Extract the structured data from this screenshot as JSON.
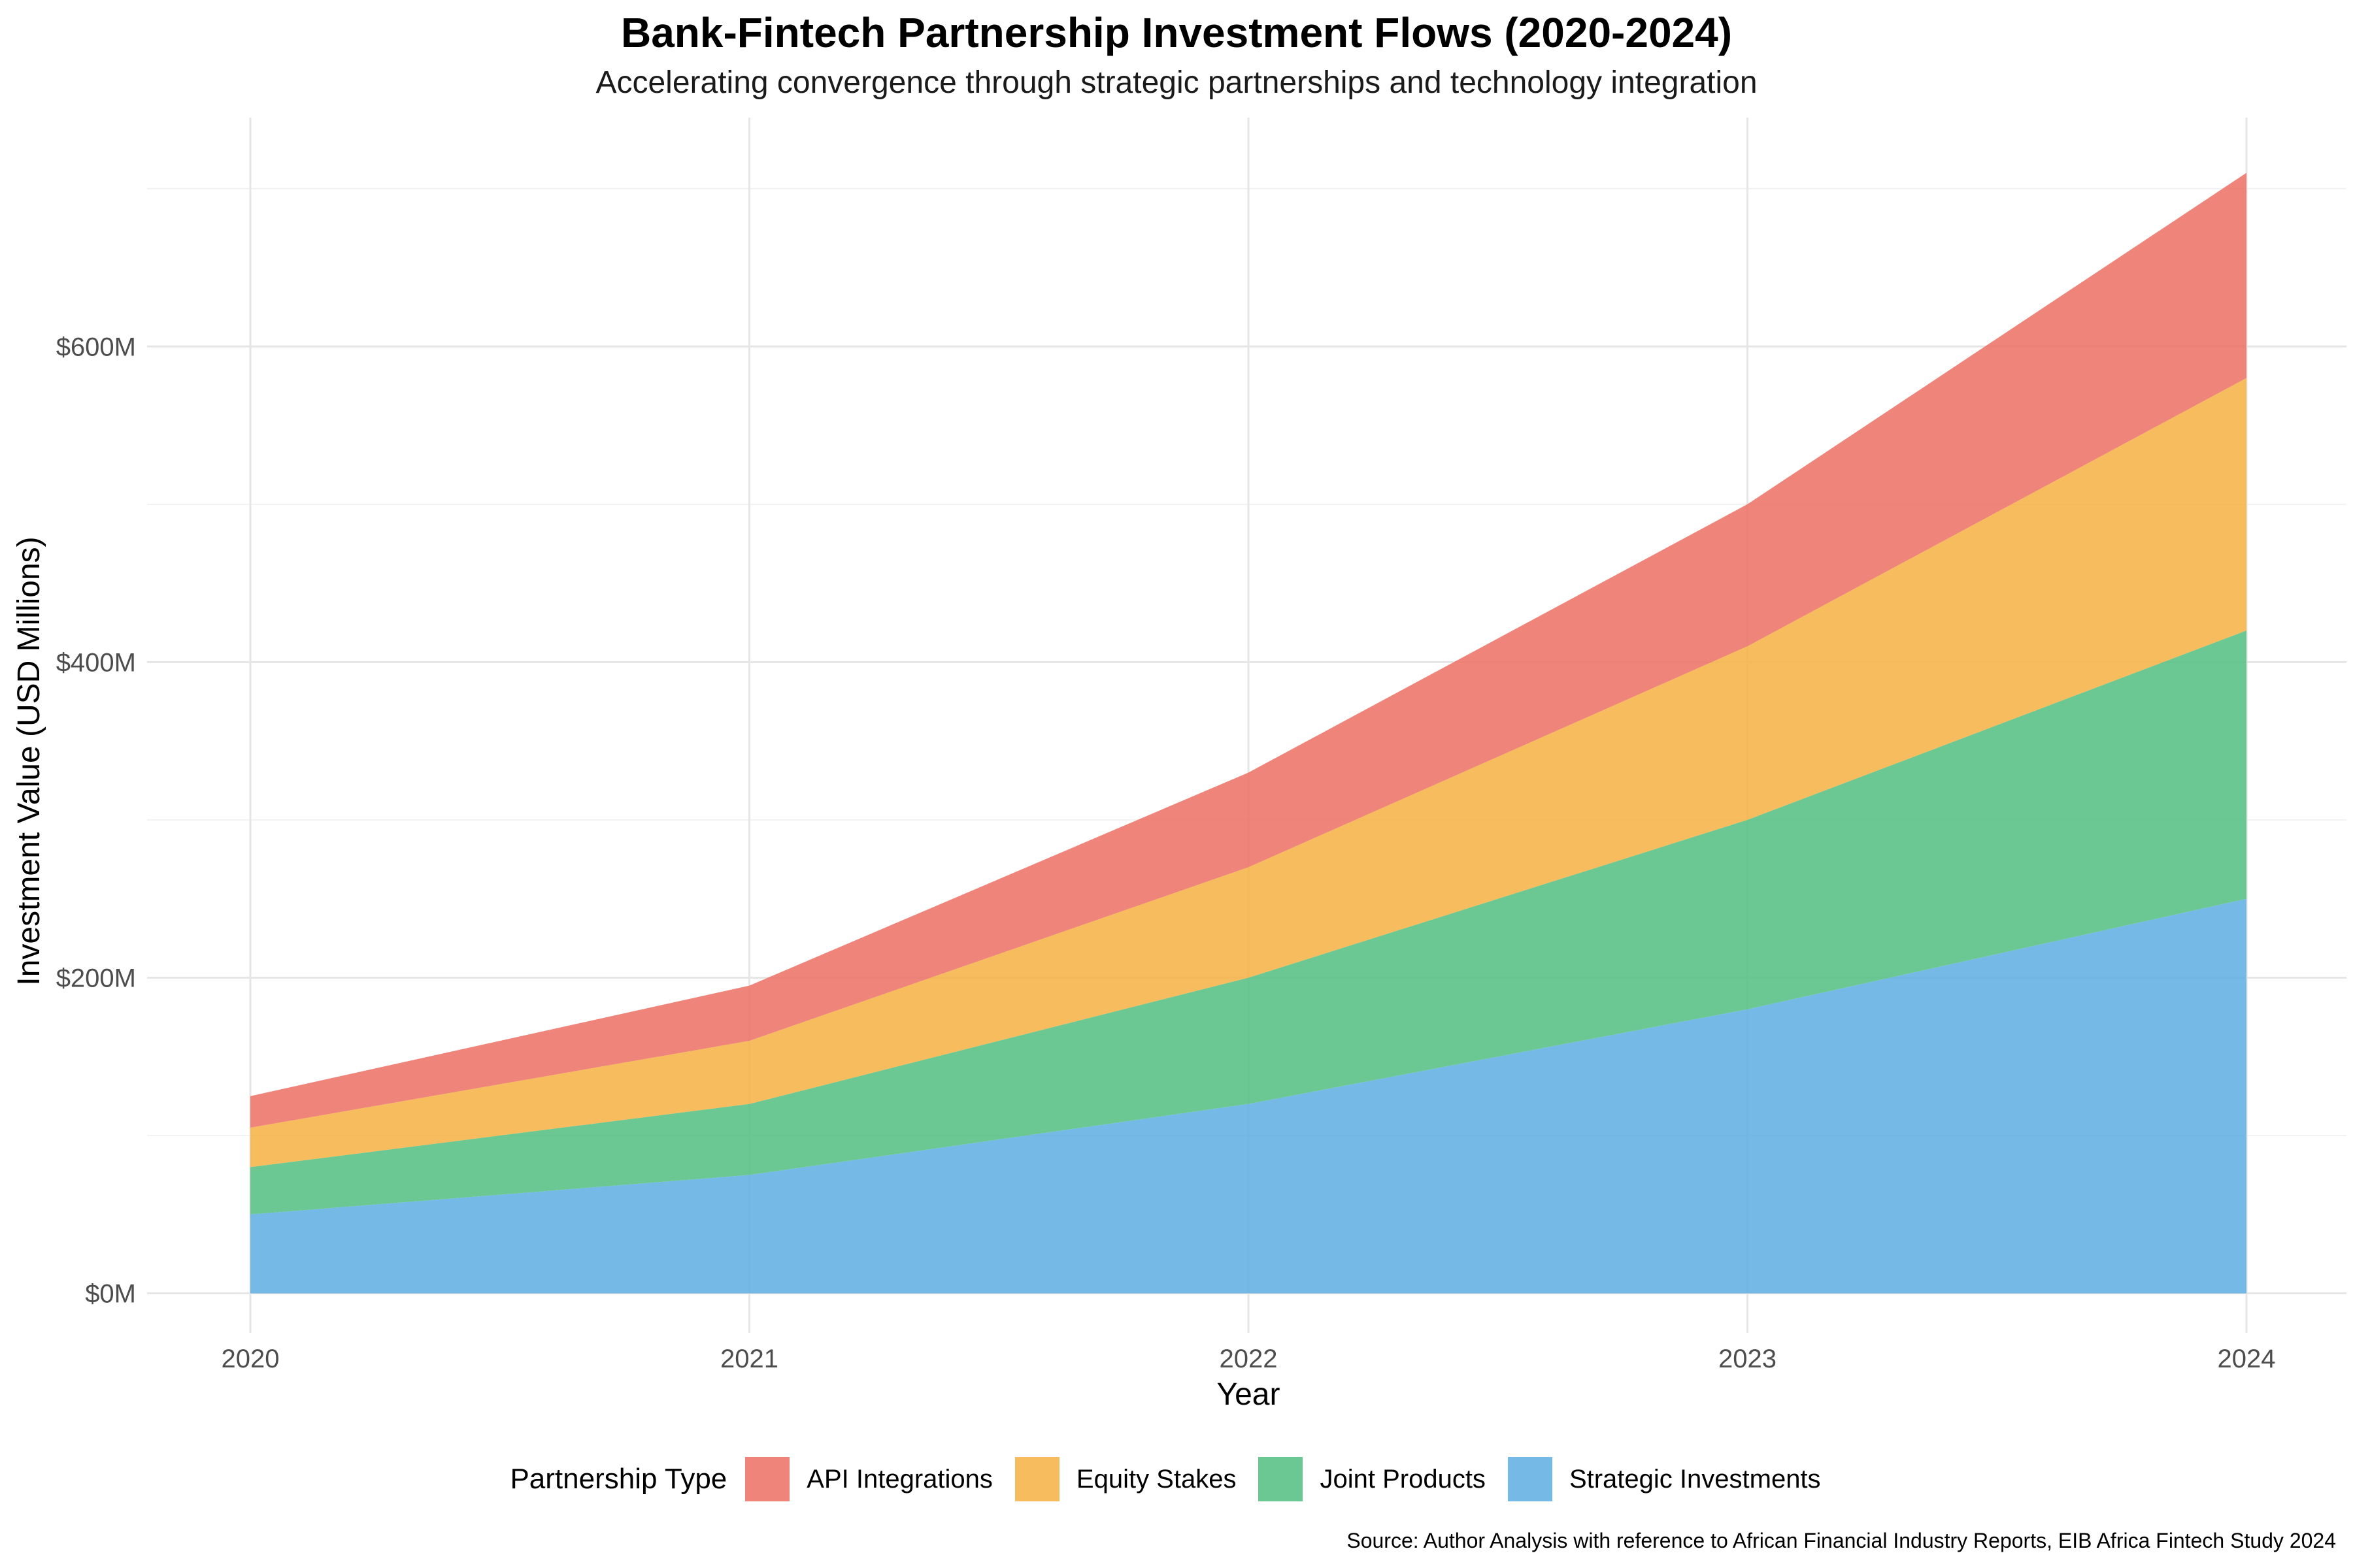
{
  "title": "Bank-Fintech Partnership Investment Flows (2020-2024)",
  "subtitle": "Accelerating convergence through strategic partnerships and technology integration",
  "caption": "Source: Author Analysis with reference to African Financial Industry Reports, EIB Africa Fintech Study 2024",
  "legend": {
    "title": "Partnership Type"
  },
  "chart_data": {
    "type": "area",
    "stacked": true,
    "x": [
      "2020",
      "2021",
      "2022",
      "2023",
      "2024"
    ],
    "xlabel": "Year",
    "ylabel": "Investment Value (USD Millions)",
    "ylim": [
      -25,
      745
    ],
    "yticks": [
      0,
      200,
      400,
      600
    ],
    "ytick_labels": [
      "$0M",
      "$200M",
      "$400M",
      "$600M"
    ],
    "grid": true,
    "legend_position": "bottom",
    "series": [
      {
        "name": "Strategic Investments",
        "color": "#5DADE2",
        "values": [
          50,
          75,
          120,
          180,
          250
        ]
      },
      {
        "name": "Joint Products",
        "color": "#52BE80",
        "values": [
          30,
          45,
          80,
          120,
          170
        ]
      },
      {
        "name": "Equity Stakes",
        "color": "#F5B041",
        "values": [
          25,
          40,
          70,
          110,
          160
        ]
      },
      {
        "name": "API Integrations",
        "color": "#EC7063",
        "values": [
          20,
          35,
          60,
          90,
          130
        ]
      }
    ]
  }
}
